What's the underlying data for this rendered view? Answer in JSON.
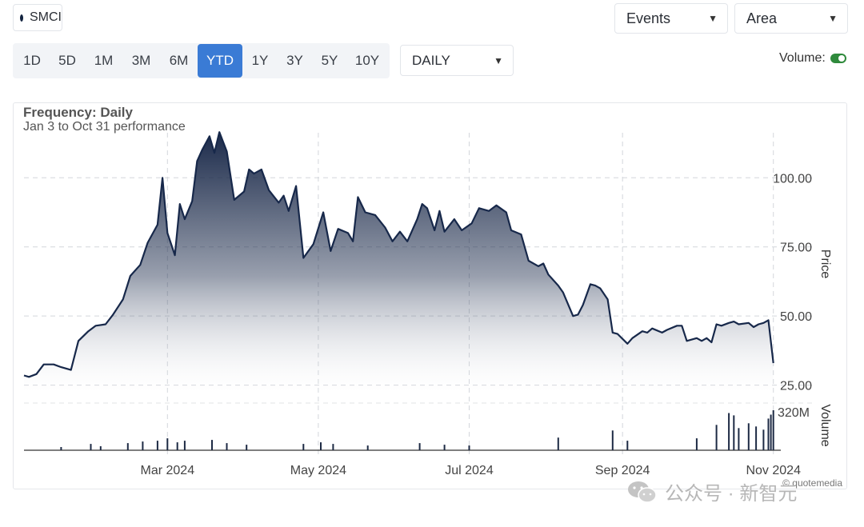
{
  "symbol": "SMCI",
  "controls": {
    "events_label": "Events",
    "chart_type_label": "Area",
    "ranges": [
      "1D",
      "5D",
      "1M",
      "3M",
      "6M",
      "YTD",
      "1Y",
      "3Y",
      "5Y",
      "10Y"
    ],
    "active_range": "YTD",
    "frequency_select": "DAILY",
    "volume_label": "Volume:",
    "volume_on": true
  },
  "chart_header": {
    "frequency": "Frequency: Daily",
    "performance": "Jan 3 to Oct 31 performance"
  },
  "credit": "© quotemedia",
  "watermark": "公众号 · 新智元",
  "colors": {
    "line": "#17284a",
    "area_top": "#1b2a4a",
    "area_bottom": "#ffffff",
    "accent": "#3a7bd5",
    "toggle_on": "#2f8a3c"
  },
  "chart_data": {
    "type": "area",
    "x_axis": {
      "ticks": [
        "Mar 2024",
        "May 2024",
        "Jul 2024",
        "Sep 2024",
        "Nov 2024"
      ],
      "tick_dates": [
        "2024-03-01",
        "2024-05-01",
        "2024-07-01",
        "2024-09-01",
        "2024-11-01"
      ],
      "range": [
        "2024-01-03",
        "2024-11-04"
      ]
    },
    "price_axis": {
      "label": "Price",
      "ticks": [
        25,
        50,
        75,
        100
      ],
      "tick_labels": [
        "25.00",
        "50.00",
        "75.00",
        "100.00"
      ],
      "range": [
        22,
        118
      ]
    },
    "volume_axis": {
      "label": "Volume",
      "tick_label": "320M",
      "max": 320
    },
    "grid": true,
    "series": [
      {
        "values": [
          [
            "2024-01-03",
            28.5
          ],
          [
            "2024-01-05",
            28.0
          ],
          [
            "2024-01-08",
            29.0
          ],
          [
            "2024-01-11",
            32.5
          ],
          [
            "2024-01-15",
            32.5
          ],
          [
            "2024-01-18",
            31.5
          ],
          [
            "2024-01-22",
            30.5
          ],
          [
            "2024-01-25",
            41.0
          ],
          [
            "2024-01-29",
            44.5
          ],
          [
            "2024-02-01",
            46.5
          ],
          [
            "2024-02-05",
            47.0
          ],
          [
            "2024-02-08",
            50.5
          ],
          [
            "2024-02-12",
            56.0
          ],
          [
            "2024-02-15",
            64.5
          ],
          [
            "2024-02-19",
            68.5
          ],
          [
            "2024-02-22",
            76.5
          ],
          [
            "2024-02-26",
            83.0
          ],
          [
            "2024-02-28",
            100.0
          ],
          [
            "2024-03-01",
            80.0
          ],
          [
            "2024-03-04",
            72.0
          ],
          [
            "2024-03-06",
            90.5
          ],
          [
            "2024-03-08",
            85.0
          ],
          [
            "2024-03-11",
            91.5
          ],
          [
            "2024-03-13",
            106.0
          ],
          [
            "2024-03-15",
            110.0
          ],
          [
            "2024-03-18",
            115.0
          ],
          [
            "2024-03-20",
            109.0
          ],
          [
            "2024-03-22",
            116.5
          ],
          [
            "2024-03-25",
            109.5
          ],
          [
            "2024-03-28",
            92.0
          ],
          [
            "2024-04-01",
            95.0
          ],
          [
            "2024-04-03",
            103.0
          ],
          [
            "2024-04-05",
            101.5
          ],
          [
            "2024-04-08",
            103.0
          ],
          [
            "2024-04-11",
            95.5
          ],
          [
            "2024-04-15",
            91.0
          ],
          [
            "2024-04-17",
            93.5
          ],
          [
            "2024-04-19",
            88.0
          ],
          [
            "2024-04-22",
            97.0
          ],
          [
            "2024-04-25",
            71.0
          ],
          [
            "2024-04-29",
            76.0
          ],
          [
            "2024-05-03",
            87.5
          ],
          [
            "2024-05-06",
            73.5
          ],
          [
            "2024-05-09",
            81.5
          ],
          [
            "2024-05-13",
            80.0
          ],
          [
            "2024-05-15",
            77.0
          ],
          [
            "2024-05-17",
            93.0
          ],
          [
            "2024-05-20",
            87.5
          ],
          [
            "2024-05-24",
            86.5
          ],
          [
            "2024-05-28",
            82.0
          ],
          [
            "2024-05-31",
            77.0
          ],
          [
            "2024-06-03",
            80.5
          ],
          [
            "2024-06-06",
            77.0
          ],
          [
            "2024-06-10",
            85.0
          ],
          [
            "2024-06-12",
            90.5
          ],
          [
            "2024-06-14",
            89.0
          ],
          [
            "2024-06-17",
            81.0
          ],
          [
            "2024-06-19",
            88.0
          ],
          [
            "2024-06-21",
            80.5
          ],
          [
            "2024-06-25",
            85.0
          ],
          [
            "2024-06-28",
            81.0
          ],
          [
            "2024-07-02",
            83.5
          ],
          [
            "2024-07-05",
            89.0
          ],
          [
            "2024-07-09",
            88.0
          ],
          [
            "2024-07-12",
            90.0
          ],
          [
            "2024-07-16",
            87.5
          ],
          [
            "2024-07-18",
            81.0
          ],
          [
            "2024-07-22",
            79.5
          ],
          [
            "2024-07-25",
            70.0
          ],
          [
            "2024-07-29",
            68.0
          ],
          [
            "2024-07-31",
            69.0
          ],
          [
            "2024-08-02",
            65.0
          ],
          [
            "2024-08-06",
            61.0
          ],
          [
            "2024-08-08",
            58.5
          ],
          [
            "2024-08-12",
            50.0
          ],
          [
            "2024-08-14",
            50.5
          ],
          [
            "2024-08-16",
            54.0
          ],
          [
            "2024-08-19",
            61.5
          ],
          [
            "2024-08-21",
            61.0
          ],
          [
            "2024-08-23",
            60.0
          ],
          [
            "2024-08-26",
            56.0
          ],
          [
            "2024-08-28",
            44.0
          ],
          [
            "2024-08-30",
            43.5
          ],
          [
            "2024-09-03",
            40.0
          ],
          [
            "2024-09-05",
            42.0
          ],
          [
            "2024-09-09",
            44.5
          ],
          [
            "2024-09-11",
            44.0
          ],
          [
            "2024-09-13",
            45.5
          ],
          [
            "2024-09-17",
            44.0
          ],
          [
            "2024-09-19",
            45.0
          ],
          [
            "2024-09-23",
            46.5
          ],
          [
            "2024-09-25",
            46.5
          ],
          [
            "2024-09-27",
            41.0
          ],
          [
            "2024-10-01",
            42.0
          ],
          [
            "2024-10-03",
            41.0
          ],
          [
            "2024-10-05",
            42.0
          ],
          [
            "2024-10-07",
            40.5
          ],
          [
            "2024-10-09",
            47.0
          ],
          [
            "2024-10-11",
            46.5
          ],
          [
            "2024-10-14",
            47.5
          ],
          [
            "2024-10-16",
            48.0
          ],
          [
            "2024-10-18",
            47.0
          ],
          [
            "2024-10-22",
            47.5
          ],
          [
            "2024-10-24",
            46.0
          ],
          [
            "2024-10-26",
            47.0
          ],
          [
            "2024-10-28",
            47.5
          ],
          [
            "2024-10-30",
            48.5
          ],
          [
            "2024-11-01",
            33.0
          ]
        ]
      }
    ],
    "volume": [
      [
        "2024-01-18",
        4
      ],
      [
        "2024-01-30",
        8
      ],
      [
        "2024-02-03",
        5
      ],
      [
        "2024-02-14",
        9
      ],
      [
        "2024-02-20",
        11
      ],
      [
        "2024-02-26",
        12
      ],
      [
        "2024-03-01",
        15
      ],
      [
        "2024-03-05",
        10
      ],
      [
        "2024-03-08",
        12
      ],
      [
        "2024-03-19",
        13
      ],
      [
        "2024-03-25",
        9
      ],
      [
        "2024-04-02",
        7
      ],
      [
        "2024-04-25",
        8
      ],
      [
        "2024-05-02",
        10
      ],
      [
        "2024-05-07",
        8
      ],
      [
        "2024-05-21",
        6
      ],
      [
        "2024-06-11",
        9
      ],
      [
        "2024-06-21",
        7
      ],
      [
        "2024-07-01",
        6
      ],
      [
        "2024-08-06",
        16
      ],
      [
        "2024-08-28",
        25
      ],
      [
        "2024-09-03",
        12
      ],
      [
        "2024-10-01",
        15
      ],
      [
        "2024-10-09",
        32
      ],
      [
        "2024-10-14",
        47
      ],
      [
        "2024-10-16",
        44
      ],
      [
        "2024-10-18",
        28
      ],
      [
        "2024-10-22",
        34
      ],
      [
        "2024-10-25",
        30
      ],
      [
        "2024-10-28",
        26
      ],
      [
        "2024-10-30",
        40
      ],
      [
        "2024-10-31",
        45
      ],
      [
        "2024-11-01",
        160
      ]
    ]
  }
}
